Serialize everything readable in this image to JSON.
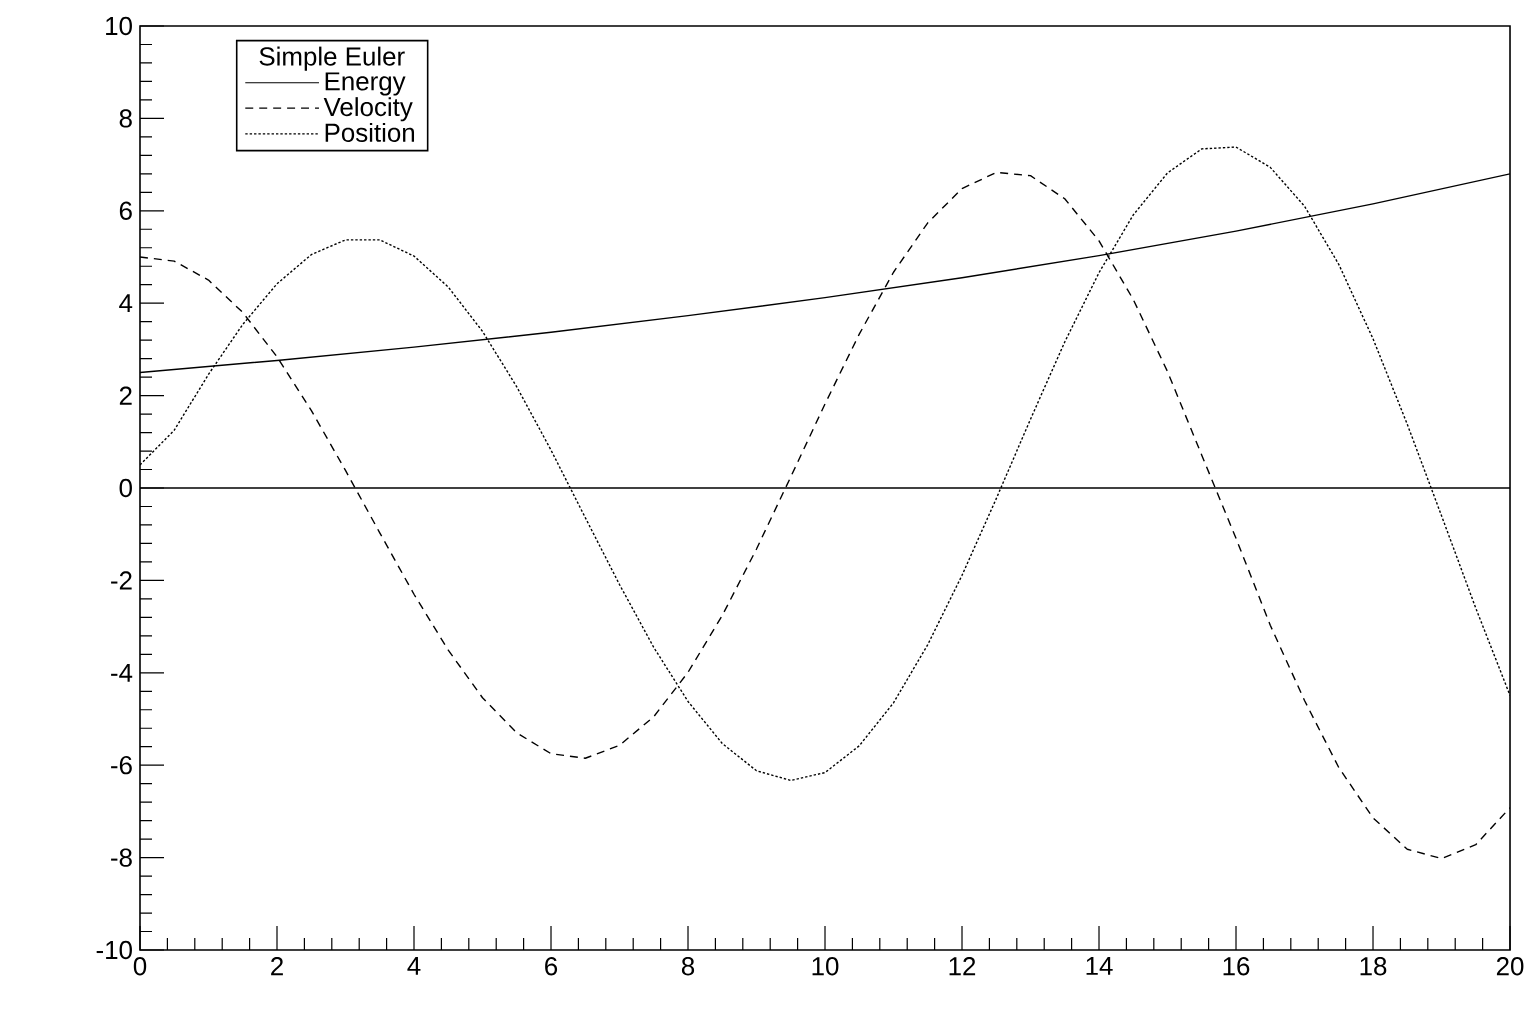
{
  "chart_data": {
    "type": "line",
    "legend_title": "Simple Euler",
    "legend": "top left",
    "marker": "none",
    "grid": false,
    "xlim": [
      0,
      20
    ],
    "ylim": [
      -10,
      10
    ],
    "xticks": [
      0,
      2,
      4,
      6,
      8,
      10,
      12,
      14,
      16,
      18,
      20
    ],
    "yticks": [
      -10,
      -8,
      -6,
      -4,
      -2,
      0,
      2,
      4,
      6,
      8,
      10
    ],
    "ref_lines": [
      {
        "axis": "y",
        "value": 0,
        "color": "#000000",
        "line_style": "solid"
      }
    ],
    "series": [
      {
        "name": "Energy",
        "color": "#000000",
        "line_style": "solid",
        "x": [
          0,
          2,
          4,
          6,
          8,
          10,
          12,
          14,
          16,
          18,
          20
        ],
        "values": [
          2.5,
          2.76,
          3.05,
          3.37,
          3.73,
          4.12,
          4.55,
          5.03,
          5.56,
          6.15,
          6.8
        ]
      },
      {
        "name": "Velocity",
        "color": "#000000",
        "line_style": "dashed",
        "x": [
          0,
          0.5,
          1,
          1.5,
          2,
          2.5,
          3,
          3.5,
          4,
          4.5,
          5,
          5.5,
          6,
          6.5,
          7,
          7.5,
          8,
          8.5,
          9,
          9.5,
          10,
          10.5,
          11,
          11.5,
          12,
          12.5,
          13,
          13.5,
          14,
          14.5,
          15,
          15.5,
          16,
          16.5,
          17,
          17.5,
          18,
          18.5,
          19,
          19.5,
          20
        ],
        "values": [
          5.0,
          4.91,
          4.5,
          3.8,
          2.84,
          1.68,
          0.38,
          -0.97,
          -2.3,
          -3.51,
          -4.54,
          -5.3,
          -5.75,
          -5.85,
          -5.57,
          -4.95,
          -3.99,
          -2.76,
          -1.32,
          0.24,
          1.82,
          3.33,
          4.67,
          5.74,
          6.48,
          6.83,
          6.76,
          6.26,
          5.35,
          4.08,
          2.52,
          0.71,
          -1.09,
          -2.97,
          -4.6,
          -6.05,
          -7.14,
          -7.82,
          -8.02,
          -7.72,
          -6.92
        ]
      },
      {
        "name": "Position",
        "color": "#000000",
        "line_style": "dotted",
        "x": [
          0,
          0.5,
          1,
          1.5,
          2,
          2.5,
          3,
          3.5,
          4,
          4.5,
          5,
          5.5,
          6,
          6.5,
          7,
          7.5,
          8,
          8.5,
          9,
          9.5,
          10,
          10.5,
          11,
          11.5,
          12,
          12.5,
          13,
          13.5,
          14,
          14.5,
          15,
          15.5,
          16,
          16.5,
          17,
          17.5,
          18,
          18.5,
          19,
          19.5,
          20
        ],
        "values": [
          0.5,
          1.25,
          2.46,
          3.54,
          4.42,
          5.05,
          5.37,
          5.37,
          5.02,
          4.35,
          3.39,
          2.19,
          0.82,
          -0.64,
          -2.09,
          -3.45,
          -4.62,
          -5.53,
          -6.12,
          -6.33,
          -6.16,
          -5.58,
          -4.65,
          -3.39,
          -1.89,
          -0.23,
          1.49,
          3.16,
          4.66,
          5.91,
          6.82,
          7.34,
          7.38,
          6.94,
          6.1,
          4.84,
          3.23,
          1.38,
          -0.6,
          -2.6,
          -4.49
        ]
      }
    ]
  }
}
